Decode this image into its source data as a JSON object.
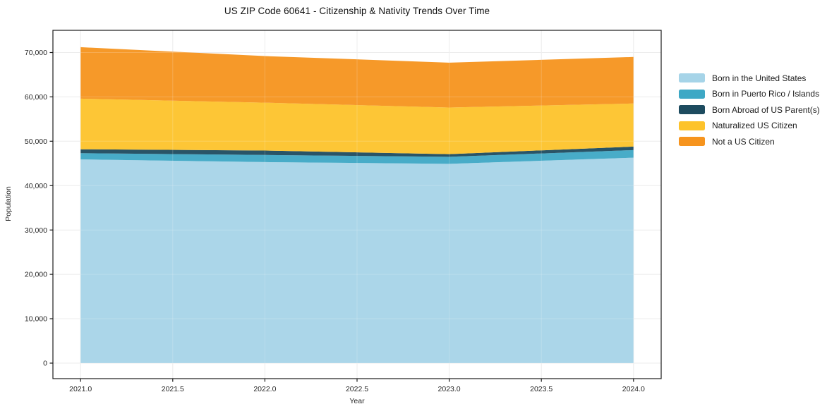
{
  "chart_data": {
    "type": "area",
    "stacked": true,
    "title": "US ZIP Code 60641 - Citizenship & Nativity Trends Over Time",
    "xlabel": "Year",
    "ylabel": "Population",
    "x": [
      2021,
      2022,
      2023,
      2024
    ],
    "series": [
      {
        "name": "Born in the United States",
        "color": "#A6D4E8",
        "values": [
          45900,
          45300,
          44900,
          46300
        ]
      },
      {
        "name": "Born in Puerto Rico / Islands",
        "color": "#3EA8C5",
        "values": [
          1400,
          1600,
          1600,
          1700
        ]
      },
      {
        "name": "Born Abroad of US Parent(s)",
        "color": "#1D4B5F",
        "values": [
          900,
          1000,
          600,
          800
        ]
      },
      {
        "name": "Naturalized US Citizen",
        "color": "#FDC32B",
        "values": [
          11400,
          10800,
          10500,
          9700
        ]
      },
      {
        "name": "Not a US Citizen",
        "color": "#F6941E",
        "values": [
          11600,
          10500,
          10100,
          10500
        ]
      }
    ],
    "totals": [
      71200,
      69200,
      67700,
      69000
    ],
    "x_tick_labels": [
      "2021.0",
      "2021.5",
      "2022.0",
      "2022.5",
      "2023.0",
      "2023.5",
      "2024.0"
    ],
    "x_tick_values": [
      2021,
      2021.5,
      2022,
      2022.5,
      2023,
      2023.5,
      2024
    ],
    "y_tick_labels": [
      "0",
      "10,000",
      "20,000",
      "30,000",
      "40,000",
      "50,000",
      "60,000",
      "70,000"
    ],
    "y_tick_values": [
      0,
      10000,
      20000,
      30000,
      40000,
      50000,
      60000,
      70000
    ],
    "xlim": [
      2020.85,
      2024.15
    ],
    "ylim": [
      -3500,
      75000
    ],
    "grid": true,
    "legend_position": "right-outside",
    "colors": {
      "grid": "#e8e8e8",
      "spine": "#1a1a1a",
      "tick_text": "#262626",
      "background": "#ffffff"
    }
  }
}
